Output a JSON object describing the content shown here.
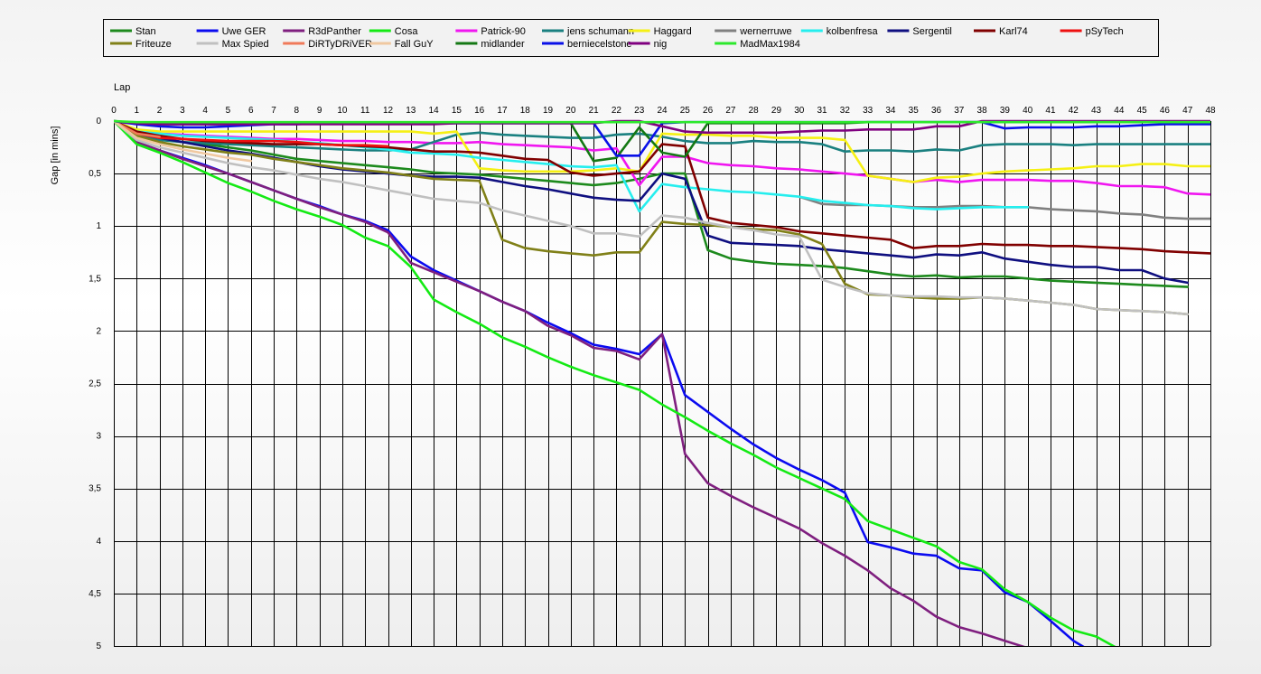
{
  "chart_data": {
    "type": "line",
    "title": "",
    "xlabel": "Lap",
    "ylabel": "Gap [in mins]",
    "x_ticks": [
      "0",
      "1",
      "2",
      "3",
      "4",
      "5",
      "6",
      "7",
      "8",
      "9",
      "10",
      "11",
      "12",
      "13",
      "14",
      "15",
      "16",
      "17",
      "18",
      "19",
      "20",
      "21",
      "22",
      "23",
      "24",
      "25",
      "26",
      "27",
      "28",
      "29",
      "30",
      "31",
      "32",
      "33",
      "34",
      "35",
      "36",
      "37",
      "38",
      "39",
      "40",
      "41",
      "42",
      "43",
      "44",
      "45",
      "46",
      "47",
      "48"
    ],
    "y_ticks": [
      "0",
      "0.5",
      "1",
      "1.5",
      "2",
      "2.5",
      "3",
      "3.5",
      "4",
      "4.5",
      "5"
    ],
    "xlim": [
      0,
      48
    ],
    "ylim": [
      0,
      5
    ],
    "y_inverted": true,
    "grid": true,
    "legend_position": "top",
    "series": [
      {
        "name": "Stan",
        "color": "#1d8a1d",
        "values": [
          0,
          0.12,
          0.17,
          0.2,
          0.22,
          0.25,
          0.28,
          0.32,
          0.36,
          0.38,
          0.4,
          0.42,
          0.44,
          0.46,
          0.49,
          0.5,
          0.51,
          0.53,
          0.55,
          0.57,
          0.59,
          0.61,
          0.59,
          0.55,
          0.5,
          0.5,
          1.23,
          1.31,
          1.34,
          1.36,
          1.37,
          1.38,
          1.4,
          1.43,
          1.46,
          1.48,
          1.47,
          1.49,
          1.48,
          1.48,
          1.5,
          1.52,
          1.53,
          1.54,
          1.55,
          1.56,
          1.57,
          1.58,
          null
        ]
      },
      {
        "name": "Uwe GER",
        "color": "#0b0bf0",
        "values": [
          0,
          0.2,
          0.28,
          0.35,
          0.42,
          0.5,
          0.58,
          0.66,
          0.74,
          0.81,
          0.89,
          0.95,
          1.04,
          1.29,
          1.42,
          1.52,
          1.62,
          1.72,
          1.81,
          1.92,
          2.02,
          2.13,
          2.17,
          2.22,
          2.03,
          2.61,
          2.77,
          2.93,
          3.08,
          3.21,
          3.32,
          3.42,
          3.54,
          4.01,
          4.06,
          4.12,
          4.14,
          4.26,
          4.28,
          4.49,
          4.58,
          4.76,
          4.95,
          5.08,
          null,
          null,
          null,
          null,
          null
        ]
      },
      {
        "name": "R3dPanther",
        "color": "#7f1f7f",
        "values": [
          0,
          0.2,
          0.28,
          0.36,
          0.43,
          0.5,
          0.58,
          0.66,
          0.74,
          0.82,
          0.89,
          0.96,
          1.06,
          1.35,
          1.44,
          1.53,
          1.62,
          1.72,
          1.81,
          1.95,
          2.04,
          2.16,
          2.19,
          2.27,
          2.03,
          3.17,
          3.45,
          3.57,
          3.68,
          3.78,
          3.88,
          4.02,
          4.14,
          4.28,
          4.45,
          4.57,
          4.72,
          4.82,
          4.88,
          4.95,
          5.02,
          null,
          null,
          null,
          null,
          null,
          null,
          null,
          null
        ]
      },
      {
        "name": "Cosa",
        "color": "#14ea14",
        "values": [
          0,
          0.22,
          0.3,
          0.39,
          0.49,
          0.59,
          0.67,
          0.76,
          0.84,
          0.91,
          0.99,
          1.11,
          1.19,
          1.39,
          1.7,
          1.82,
          1.93,
          2.06,
          2.15,
          2.25,
          2.34,
          2.42,
          2.49,
          2.56,
          2.7,
          2.82,
          2.95,
          3.07,
          3.18,
          3.3,
          3.4,
          3.5,
          3.6,
          3.81,
          3.89,
          3.97,
          4.05,
          4.2,
          4.27,
          4.46,
          4.58,
          4.73,
          4.85,
          4.91,
          5.03,
          null,
          null,
          null,
          null
        ]
      },
      {
        "name": "Patrick-90",
        "color": "#f016f0",
        "values": [
          0,
          0.1,
          0.12,
          0.13,
          0.14,
          0.15,
          0.16,
          0.17,
          0.17,
          0.18,
          0.19,
          0.19,
          0.2,
          0.2,
          0.21,
          0.21,
          0.2,
          0.22,
          0.23,
          0.24,
          0.25,
          0.28,
          0.26,
          0.61,
          0.34,
          0.34,
          0.4,
          0.42,
          0.43,
          0.45,
          0.46,
          0.48,
          0.5,
          0.52,
          0.55,
          0.58,
          0.56,
          0.58,
          0.56,
          0.56,
          0.56,
          0.57,
          0.57,
          0.59,
          0.62,
          0.62,
          0.63,
          0.69,
          0.7
        ]
      },
      {
        "name": "jens_schumann",
        "color": "#1a8080",
        "values": [
          0,
          0.14,
          0.18,
          0.2,
          0.21,
          0.22,
          0.23,
          0.24,
          0.25,
          0.26,
          0.27,
          0.28,
          0.28,
          0.27,
          0.2,
          0.13,
          0.11,
          0.13,
          0.14,
          0.15,
          0.16,
          0.16,
          0.13,
          0.12,
          0.15,
          0.19,
          0.21,
          0.21,
          0.19,
          0.2,
          0.2,
          0.22,
          0.29,
          0.28,
          0.28,
          0.29,
          0.27,
          0.28,
          0.23,
          0.22,
          0.22,
          0.22,
          0.23,
          0.22,
          0.22,
          0.22,
          0.22,
          0.22,
          0.22
        ]
      },
      {
        "name": "Haggard",
        "color": "#f5f014",
        "values": [
          0,
          0.08,
          0.1,
          0.1,
          0.1,
          0.1,
          0.1,
          0.1,
          0.1,
          0.1,
          0.1,
          0.1,
          0.1,
          0.1,
          0.12,
          0.1,
          0.45,
          0.47,
          0.48,
          0.48,
          0.48,
          0.47,
          0.45,
          0.48,
          0.12,
          0.13,
          0.13,
          0.14,
          0.14,
          0.16,
          0.16,
          0.16,
          0.18,
          0.52,
          0.55,
          0.58,
          0.54,
          0.53,
          0.5,
          0.48,
          0.47,
          0.46,
          0.45,
          0.43,
          0.43,
          0.41,
          0.41,
          0.43,
          0.43
        ]
      },
      {
        "name": "wernerruwe",
        "color": "#808080",
        "values": [
          0,
          null,
          null,
          null,
          null,
          null,
          null,
          null,
          null,
          null,
          null,
          null,
          null,
          null,
          null,
          null,
          null,
          null,
          null,
          null,
          null,
          null,
          null,
          null,
          null,
          null,
          null,
          null,
          null,
          null,
          0.72,
          0.79,
          0.8,
          0.8,
          0.81,
          0.82,
          0.82,
          0.81,
          0.81,
          0.82,
          0.82,
          0.84,
          0.85,
          0.86,
          0.88,
          0.89,
          0.92,
          0.93,
          0.93
        ]
      },
      {
        "name": "kolbenfresa",
        "color": "#25eeee",
        "values": [
          0,
          0.1,
          0.12,
          0.14,
          0.15,
          0.16,
          0.17,
          0.18,
          0.2,
          0.21,
          0.23,
          0.25,
          0.27,
          0.3,
          0.31,
          0.32,
          0.35,
          0.37,
          0.39,
          0.41,
          0.43,
          0.44,
          0.42,
          0.86,
          0.6,
          0.63,
          0.65,
          0.67,
          0.68,
          0.7,
          0.72,
          0.76,
          0.78,
          0.8,
          0.81,
          0.83,
          0.84,
          0.83,
          0.82,
          0.82,
          0.82,
          null,
          null,
          null,
          null,
          null,
          null,
          null,
          null
        ]
      },
      {
        "name": "Sergentil",
        "color": "#0f0f80",
        "values": [
          0,
          0.12,
          0.16,
          0.2,
          0.24,
          0.28,
          0.31,
          0.35,
          0.39,
          0.43,
          0.46,
          0.48,
          0.5,
          0.52,
          0.53,
          0.53,
          0.54,
          0.58,
          0.62,
          0.65,
          0.69,
          0.73,
          0.75,
          0.76,
          0.5,
          0.55,
          1.09,
          1.16,
          1.17,
          1.18,
          1.19,
          1.22,
          1.24,
          1.26,
          1.28,
          1.3,
          1.27,
          1.28,
          1.25,
          1.31,
          1.34,
          1.37,
          1.39,
          1.39,
          1.42,
          1.42,
          1.5,
          1.54,
          null
        ]
      },
      {
        "name": "Karl74",
        "color": "#800000",
        "values": [
          0,
          0.1,
          0.14,
          0.17,
          0.19,
          0.2,
          0.21,
          0.22,
          0.22,
          0.22,
          0.23,
          0.24,
          0.25,
          0.27,
          0.29,
          0.29,
          0.3,
          0.33,
          0.36,
          0.37,
          0.49,
          0.52,
          0.5,
          0.48,
          0.22,
          0.24,
          0.92,
          0.97,
          0.99,
          1.01,
          1.05,
          1.07,
          1.09,
          1.11,
          1.13,
          1.21,
          1.19,
          1.19,
          1.17,
          1.18,
          1.18,
          1.19,
          1.19,
          1.2,
          1.21,
          1.22,
          1.24,
          1.25,
          1.26
        ]
      },
      {
        "name": "pSyTech",
        "color": "#ee1010",
        "values": [
          0,
          0.12,
          0.16,
          0.17,
          0.18,
          0.19,
          0.19,
          0.19,
          0.2,
          0.22,
          0.23,
          0.23,
          0.24,
          null,
          null,
          null,
          null,
          null,
          null,
          null,
          null,
          null,
          null,
          null,
          null,
          null,
          null,
          null,
          null,
          null,
          null,
          null,
          null,
          null,
          null,
          null,
          null,
          null,
          null,
          null,
          null,
          null,
          null,
          null,
          null,
          null,
          null,
          null,
          null
        ]
      },
      {
        "name": "Friteuze",
        "color": "#808018",
        "values": [
          0,
          0.14,
          0.2,
          0.24,
          0.27,
          0.3,
          0.32,
          0.36,
          0.39,
          0.42,
          0.45,
          0.47,
          0.49,
          0.52,
          0.55,
          0.56,
          0.57,
          1.13,
          1.21,
          1.24,
          1.26,
          1.28,
          1.25,
          1.25,
          0.96,
          0.98,
          0.99,
          1.01,
          1.03,
          1.04,
          1.08,
          1.17,
          1.55,
          1.65,
          1.66,
          1.68,
          1.69,
          1.69,
          1.68,
          1.69,
          1.71,
          1.73,
          1.75,
          1.79,
          1.8,
          1.81,
          1.82,
          1.84,
          null
        ]
      },
      {
        "name": "Max Spied",
        "color": "#c0c0c0",
        "values": [
          0,
          0.18,
          0.25,
          0.3,
          0.35,
          0.4,
          0.44,
          0.47,
          0.51,
          0.55,
          0.58,
          0.62,
          0.66,
          0.7,
          0.74,
          0.76,
          0.78,
          0.85,
          0.9,
          0.95,
          1.0,
          1.07,
          1.07,
          1.1,
          0.9,
          0.92,
          0.97,
          1.01,
          1.04,
          1.08,
          1.1,
          1.51,
          1.58,
          1.64,
          1.66,
          1.67,
          1.67,
          1.68,
          1.68,
          1.69,
          1.71,
          1.73,
          1.75,
          1.79,
          1.8,
          1.81,
          1.82,
          1.84,
          null
        ]
      },
      {
        "name": "DiRTyDRiVER",
        "color": "#f07a5a",
        "values": [
          0,
          0.12,
          0.15,
          null,
          null,
          null,
          null,
          null,
          null,
          null,
          null,
          null,
          null,
          null,
          null,
          null,
          null,
          null,
          null,
          null,
          null,
          null,
          null,
          null,
          null,
          null,
          null,
          null,
          null,
          null,
          null,
          null,
          null,
          null,
          null,
          null,
          null,
          null,
          null,
          null,
          null,
          null,
          null,
          null,
          null,
          null,
          null,
          null,
          null
        ]
      },
      {
        "name": "Fall GuY",
        "color": "#f0c8a0",
        "values": [
          0,
          0.16,
          0.22,
          0.27,
          0.31,
          0.35,
          0.38,
          null,
          null,
          null,
          null,
          null,
          null,
          null,
          null,
          null,
          null,
          null,
          null,
          null,
          null,
          null,
          null,
          null,
          null,
          null,
          null,
          null,
          null,
          null,
          null,
          null,
          null,
          null,
          null,
          null,
          null,
          null,
          null,
          null,
          null,
          null,
          null,
          null,
          null,
          null,
          null,
          null,
          null
        ]
      },
      {
        "name": "midlander",
        "color": "#147814",
        "values": [
          0,
          0.02,
          0.03,
          0.03,
          0.03,
          0.03,
          0.03,
          0.02,
          0.02,
          0.02,
          0.02,
          0.02,
          0.02,
          0.02,
          0.02,
          0.02,
          0.02,
          0.02,
          0.02,
          0.02,
          0.02,
          0.38,
          0.35,
          0.06,
          0.3,
          0.34,
          0.02,
          0.02,
          0.02,
          0.02,
          0.02,
          0.02,
          0.02,
          0.01,
          0.01,
          0.01,
          0.01,
          0.01,
          0.01,
          0.01,
          0.01,
          0.01,
          0.01,
          0.01,
          0.01,
          0.01,
          0.01,
          0.01,
          0.01
        ]
      },
      {
        "name": "berniecelstone",
        "color": "#0a10e8",
        "values": [
          0,
          0.03,
          0.05,
          0.06,
          0.06,
          0.05,
          0.04,
          0.03,
          0.03,
          0.02,
          0.02,
          0.02,
          0.02,
          0.02,
          0.02,
          0.02,
          0.02,
          0.02,
          0.02,
          0.02,
          0.02,
          0.02,
          0.33,
          0.33,
          0.02,
          0.01,
          0.01,
          0.01,
          0.01,
          0.01,
          0.01,
          0.01,
          0.01,
          0.01,
          0.01,
          0.01,
          0.01,
          0.01,
          0.01,
          0.07,
          0.06,
          0.06,
          0.06,
          0.05,
          0.05,
          0.04,
          0.03,
          0.03,
          0.03
        ]
      },
      {
        "name": "nig",
        "color": "#800080",
        "values": [
          0,
          0.02,
          0.03,
          0.03,
          0.03,
          0.03,
          0.03,
          0.03,
          0.03,
          0.03,
          0.03,
          0.03,
          0.03,
          0.03,
          0.03,
          0.02,
          0.02,
          0.02,
          0.02,
          0.02,
          0.02,
          0.02,
          0,
          0,
          0.05,
          0.1,
          0.11,
          0.11,
          0.11,
          0.11,
          0.1,
          0.09,
          0.09,
          0.08,
          0.08,
          0.08,
          0.05,
          0.05,
          0,
          0,
          0,
          0,
          0,
          0,
          0,
          0,
          0,
          0,
          0
        ]
      },
      {
        "name": "MadMax1984",
        "color": "#2ce82c",
        "values": [
          0,
          0.01,
          0.01,
          0.01,
          0.01,
          0.01,
          0.01,
          0.01,
          0.01,
          0.01,
          0.01,
          0.01,
          0.01,
          0.01,
          0.01,
          0.01,
          0.01,
          0.01,
          0.01,
          0.01,
          0.01,
          0.01,
          0.01,
          0.01,
          0.01,
          0.01,
          0.01,
          0.01,
          0.01,
          0.01,
          0.01,
          0.01,
          0.01,
          0.01,
          0.01,
          0.01,
          0.01,
          0.01,
          0.01,
          0.01,
          0.01,
          0.01,
          0.01,
          0.01,
          0.01,
          0.01,
          0.01,
          0.01,
          0.01
        ]
      }
    ]
  }
}
